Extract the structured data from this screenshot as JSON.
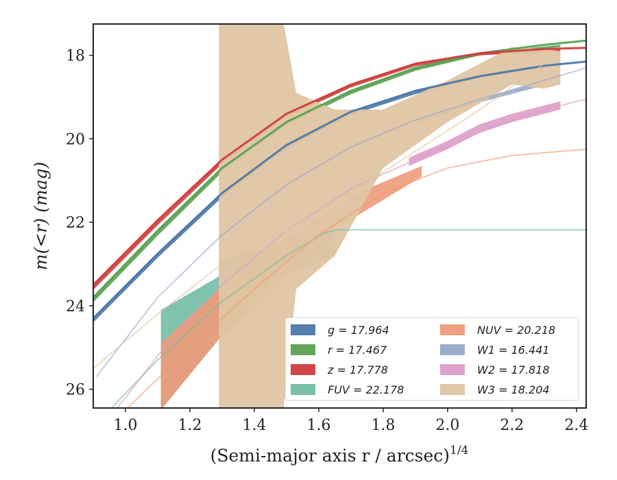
{
  "chart_data": {
    "type": "line",
    "xlabel": "(Semi-major axis r / arcsec)",
    "xlabel_sup": "1/4",
    "ylabel": "m(<r) (mag)",
    "xlim": [
      0.9,
      2.43
    ],
    "ylim": [
      26.45,
      17.25
    ],
    "y_inverted": true,
    "xticks": [
      1.0,
      1.2,
      1.4,
      1.6,
      1.8,
      2.0,
      2.2,
      2.4
    ],
    "xtick_labels": [
      "1.0",
      "1.2",
      "1.4",
      "1.6",
      "1.8",
      "2.0",
      "2.2",
      "2.4"
    ],
    "yticks": [
      18,
      20,
      22,
      24,
      26
    ],
    "ytick_labels": [
      "18",
      "20",
      "22",
      "24",
      "26"
    ],
    "grid": false,
    "legend_position": "lower-right",
    "legend_columns": 2,
    "series": [
      {
        "name": "g",
        "label": "g = 17.964",
        "color": "#4c78a8",
        "model": {
          "x": [
            0.9,
            1.1,
            1.3,
            1.5,
            1.7,
            1.9,
            2.1,
            2.3,
            2.43
          ],
          "y": [
            24.3,
            22.75,
            21.3,
            20.15,
            19.35,
            18.85,
            18.5,
            18.25,
            18.15
          ]
        },
        "band": {
          "x": [
            0.9,
            1.1,
            1.3,
            1.5,
            1.7,
            1.9,
            2.1,
            2.3
          ],
          "lower": [
            24.3,
            22.75,
            21.3,
            20.15,
            19.35,
            18.85,
            18.5,
            18.25
          ],
          "upper": [
            24.4,
            22.85,
            21.4,
            20.23,
            19.43,
            18.93,
            18.56,
            18.31
          ]
        }
      },
      {
        "name": "r",
        "label": "r = 17.467",
        "color": "#59a14f",
        "model": {
          "x": [
            0.9,
            1.1,
            1.3,
            1.5,
            1.7,
            1.9,
            2.1,
            2.3,
            2.43
          ],
          "y": [
            23.8,
            22.2,
            20.7,
            19.6,
            18.85,
            18.3,
            17.95,
            17.75,
            17.65
          ]
        },
        "band": {
          "x": [
            0.9,
            1.1,
            1.3,
            1.5,
            1.7,
            1.9,
            2.1,
            2.35
          ],
          "lower": [
            23.8,
            22.2,
            20.7,
            19.6,
            18.85,
            18.3,
            17.95,
            17.75
          ],
          "upper": [
            23.92,
            22.32,
            20.8,
            19.68,
            18.93,
            18.37,
            18.0,
            17.8
          ]
        }
      },
      {
        "name": "z",
        "label": "z = 17.778",
        "color": "#d03d3f",
        "model": {
          "x": [
            0.9,
            1.1,
            1.3,
            1.5,
            1.7,
            1.9,
            2.1,
            2.3,
            2.43
          ],
          "y": [
            23.5,
            21.95,
            20.5,
            19.4,
            18.7,
            18.2,
            17.95,
            17.85,
            17.82
          ]
        },
        "band": {
          "x": [
            0.9,
            1.1,
            1.3,
            1.5,
            1.7,
            1.9,
            2.1,
            2.35
          ],
          "lower": [
            23.5,
            21.95,
            20.5,
            19.4,
            18.7,
            18.2,
            17.95,
            17.85
          ],
          "upper": [
            23.62,
            22.07,
            20.6,
            19.48,
            18.77,
            18.26,
            18.0,
            17.9
          ]
        }
      },
      {
        "name": "FUV",
        "label": "FUV = 22.178",
        "color": "#72bca5",
        "model": {
          "x": [
            0.9,
            1.1,
            1.3,
            1.5,
            1.62,
            1.66,
            2.43
          ],
          "y": [
            26.9,
            25.3,
            23.9,
            22.8,
            22.25,
            22.18,
            22.18
          ]
        },
        "band": {
          "x": [
            1.11,
            1.29,
            1.29,
            1.45,
            1.65
          ],
          "lower": [
            24.1,
            23.3,
            22.9,
            22.6,
            22.1
          ],
          "upper": [
            26.5,
            24.8,
            24.8,
            23.4,
            22.8
          ]
        }
      },
      {
        "name": "NUV",
        "label": "NUV = 20.218",
        "color": "#ee9b79",
        "model": {
          "x": [
            1.0,
            1.2,
            1.4,
            1.6,
            1.8,
            2.0,
            2.2,
            2.43
          ],
          "y": [
            26.5,
            25.0,
            23.6,
            22.3,
            21.3,
            20.7,
            20.4,
            20.25
          ]
        },
        "band": {
          "x": [
            1.11,
            1.29,
            1.45,
            1.6,
            1.75,
            1.92
          ],
          "lower": [
            24.9,
            23.6,
            22.6,
            21.9,
            21.2,
            20.65
          ],
          "upper": [
            26.5,
            24.8,
            23.7,
            22.4,
            21.7,
            20.9
          ]
        }
      },
      {
        "name": "W1",
        "label": "W1 = 16.441",
        "color": "#97a8cb",
        "model": {
          "x": [
            0.91,
            1.1,
            1.3,
            1.5,
            1.7,
            1.9,
            2.1,
            2.3,
            2.43
          ],
          "y": [
            25.7,
            23.8,
            22.3,
            21.1,
            20.2,
            19.55,
            19.05,
            18.6,
            18.3
          ]
        },
        "band": {
          "x": [
            1.9,
            2.1,
            2.3
          ],
          "lower": [
            19.55,
            19.05,
            18.6
          ],
          "upper": [
            19.63,
            19.13,
            18.72
          ]
        }
      },
      {
        "name": "W2",
        "label": "W2 = 17.818",
        "color": "#dd9dc9",
        "model": {
          "x": [
            0.9,
            1.1,
            1.3,
            1.5,
            1.7,
            1.9,
            2.1,
            2.3,
            2.43
          ],
          "y": [
            27.2,
            25.2,
            23.5,
            22.2,
            21.2,
            20.5,
            19.85,
            19.3,
            19.05
          ]
        },
        "band": {
          "x": [
            1.88,
            2.0,
            2.1,
            2.2,
            2.35
          ],
          "lower": [
            20.45,
            20.05,
            19.65,
            19.4,
            19.1
          ],
          "upper": [
            20.65,
            20.25,
            19.85,
            19.6,
            19.3
          ]
        }
      },
      {
        "name": "W3",
        "label": "W3 = 18.204",
        "color": "#dfc5a3",
        "model": {
          "x": [
            0.9,
            1.1,
            1.3,
            1.5,
            1.7,
            1.9,
            2.1,
            2.3
          ],
          "y": [
            25.5,
            24.2,
            23.0,
            22.2,
            21.3,
            20.3,
            19.3,
            18.2
          ]
        },
        "band": {
          "x": [
            1.29,
            1.49,
            1.53,
            1.65,
            1.8,
            2.0,
            2.2,
            2.3,
            2.35
          ],
          "lower": [
            17.2,
            17.2,
            18.9,
            19.3,
            19.3,
            18.6,
            17.8,
            17.85,
            17.9
          ],
          "upper": [
            26.5,
            26.5,
            23.6,
            22.8,
            20.7,
            19.6,
            18.7,
            18.8,
            18.7
          ]
        }
      }
    ]
  }
}
